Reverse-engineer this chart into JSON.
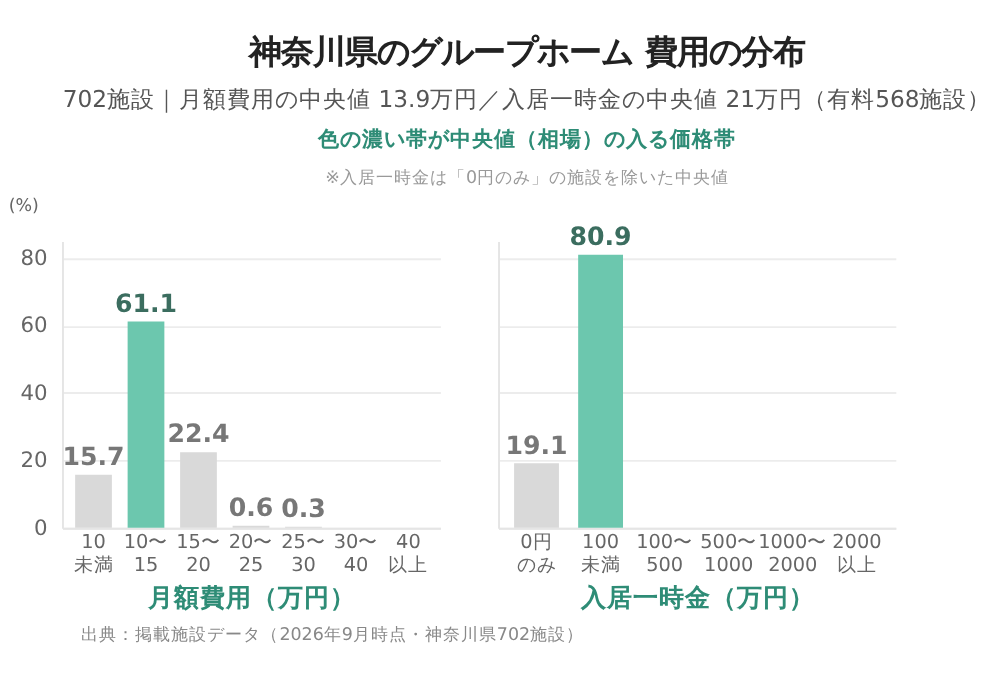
{
  "chart_data": [
    {
      "type": "bar",
      "title": "神奈川県のグループホーム 費用の分布",
      "subtitle": "702施設｜月額費用の中央値 13.9万円／入居一時金の中央値 21万円（有料568施設）",
      "annotations": [
        "色の濃い帯が中央値（相場）の入る価格帯",
        "※入居一時金は「0円のみ」の施設を除いた中央値",
        "出典：掲載施設データ（2026年9月時点・神奈川県702施設）"
      ],
      "categories": [
        "10未満",
        "10〜15",
        "15〜20",
        "20〜25",
        "25〜30",
        "30〜40",
        "40以上"
      ],
      "values": [
        15.7,
        61.1,
        22.4,
        0.6,
        0.3,
        null,
        null
      ],
      "colors": [
        "#d9d9d9",
        "#6cc7ae",
        "#d9d9d9",
        "#d9d9d9",
        "#d9d9d9",
        "#d9d9d9",
        "#d9d9d9"
      ],
      "xlabel": "月額費用（万円）",
      "ylabel": "(%)",
      "ylim": [
        0,
        85
      ],
      "yticks": [
        0,
        20,
        40,
        60,
        80
      ],
      "grid": "y",
      "data_labels": true
    },
    {
      "type": "bar",
      "categories": [
        "0円のみ",
        "100未満",
        "100〜500",
        "500〜1000",
        "1000〜2000",
        "2000以上"
      ],
      "values": [
        19.1,
        80.9,
        null,
        null,
        null,
        null
      ],
      "colors": [
        "#d9d9d9",
        "#6cc7ae",
        "#d9d9d9",
        "#d9d9d9",
        "#d9d9d9",
        "#d9d9d9"
      ],
      "xlabel": "入居一時金（万円）",
      "ylim": [
        0,
        85
      ],
      "yticks": [
        0,
        20,
        40,
        60,
        80
      ],
      "grid": "y",
      "tick_labels": "x",
      "data_labels": true
    }
  ]
}
